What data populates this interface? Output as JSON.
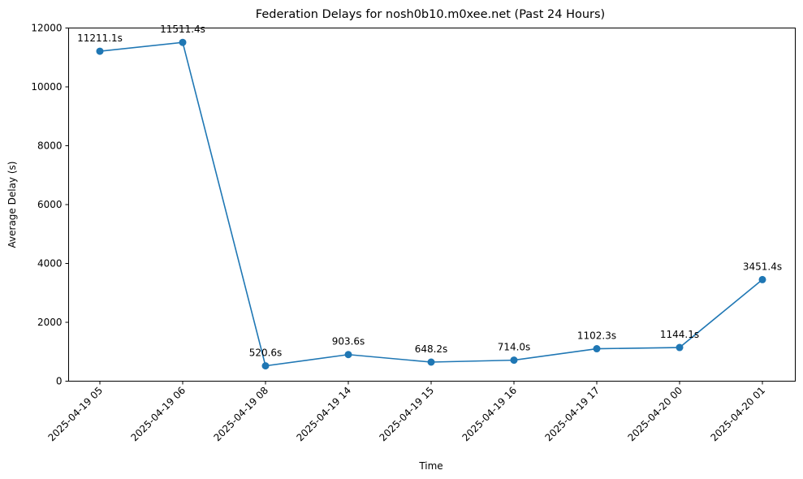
{
  "chart_data": {
    "type": "line",
    "title": "Federation Delays for nosh0b10.m0xee.net (Past 24 Hours)",
    "xlabel": "Time",
    "ylabel": "Average Delay (s)",
    "ylim": [
      0,
      12000
    ],
    "yticks": [
      0,
      2000,
      4000,
      6000,
      8000,
      10000,
      12000
    ],
    "grid": false,
    "color": "#1f77b4",
    "categories": [
      "2025-04-19 05",
      "2025-04-19 06",
      "2025-04-19 08",
      "2025-04-19 14",
      "2025-04-19 15",
      "2025-04-19 16",
      "2025-04-19 17",
      "2025-04-20 00",
      "2025-04-20 01"
    ],
    "values": [
      11211.1,
      11511.4,
      520.6,
      903.6,
      648.2,
      714.0,
      1102.3,
      1144.1,
      3451.4
    ],
    "value_labels": [
      "11211.1s",
      "11511.4s",
      "520.6s",
      "903.6s",
      "648.2s",
      "714.0s",
      "1102.3s",
      "1144.1s",
      "3451.4s"
    ]
  }
}
